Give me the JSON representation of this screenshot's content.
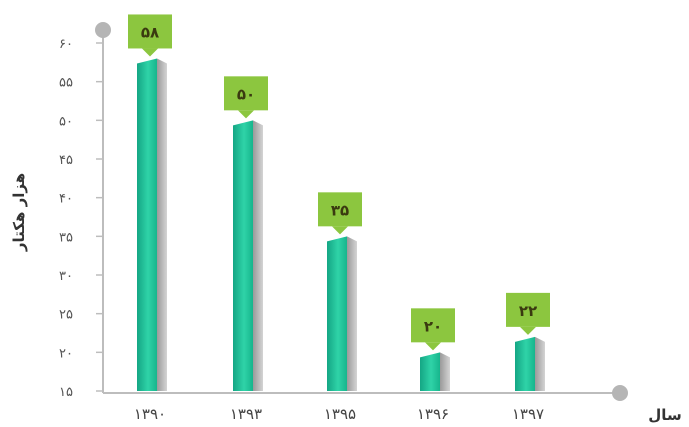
{
  "chart_data": {
    "type": "bar",
    "categories": [
      "۱۳۹۰",
      "۱۳۹۳",
      "۱۳۹۵",
      "۱۳۹۶",
      "۱۳۹۷"
    ],
    "values": [
      58,
      50,
      35,
      20,
      22
    ],
    "data_labels": [
      "۵۸",
      "۵۰",
      "۳۵",
      "۲۰",
      "۲۲"
    ],
    "ylabel": "هزار هکتار",
    "xlabel": "سال",
    "ylim": [
      15,
      60
    ],
    "yticks": [
      15,
      20,
      25,
      30,
      35,
      40,
      45,
      50,
      55,
      60
    ],
    "ytick_labels": [
      "۱۵",
      "۲۰",
      "۲۵",
      "۳۰",
      "۳۵",
      "۴۰",
      "۴۵",
      "۵۰",
      "۵۵",
      "۶۰"
    ],
    "grid": false,
    "colors": {
      "bar_front": "#1fbf96",
      "bar_side": "#b9b9b9",
      "label_box": "#8cc63f",
      "axis": "#bdbdbd"
    }
  }
}
